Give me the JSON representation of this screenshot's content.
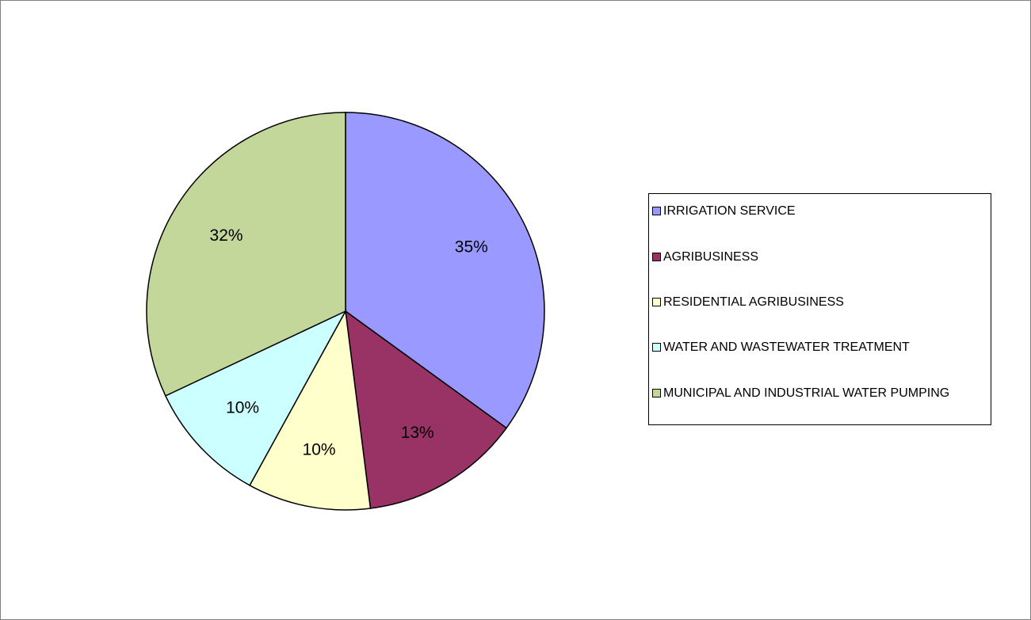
{
  "chart_data": {
    "type": "pie",
    "categories": [
      "IRRIGATION SERVICE",
      "AGRIBUSINESS",
      "RESIDENTIAL AGRIBUSINESS",
      "WATER AND WASTEWATER TREATMENT",
      "MUNICIPAL AND INDUSTRIAL WATER PUMPING"
    ],
    "values": [
      35,
      13,
      10,
      10,
      32
    ],
    "data_labels": [
      "35%",
      "13%",
      "10%",
      "10%",
      "32%"
    ],
    "colors": [
      "#9999FF",
      "#993366",
      "#FFFFCC",
      "#CCFFFF",
      "#C4D79B"
    ],
    "legend_position": "right",
    "start_angle": "12 o'clock",
    "direction": "clockwise"
  }
}
